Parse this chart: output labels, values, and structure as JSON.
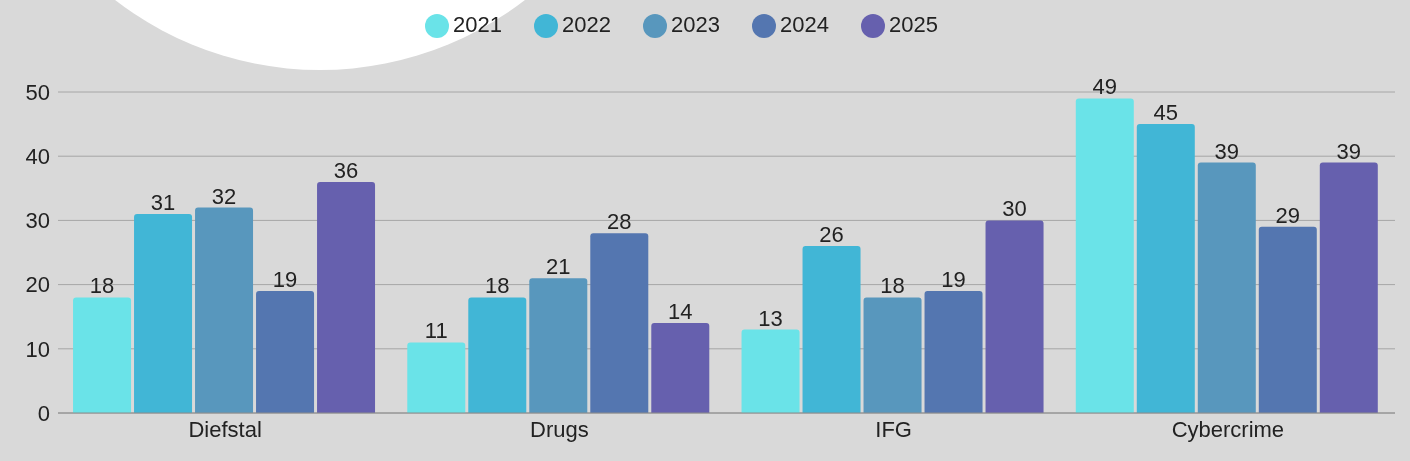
{
  "chart_data": {
    "type": "bar",
    "categories": [
      "Diefstal",
      "Drugs",
      "IFG",
      "Cybercrime"
    ],
    "series": [
      {
        "name": "2021",
        "color": "#6ae3e8",
        "values": [
          18,
          11,
          13,
          49
        ]
      },
      {
        "name": "2022",
        "color": "#41b6d6",
        "values": [
          31,
          18,
          26,
          45
        ]
      },
      {
        "name": "2023",
        "color": "#5897bd",
        "values": [
          32,
          21,
          18,
          39
        ]
      },
      {
        "name": "2024",
        "color": "#5476b0",
        "values": [
          19,
          28,
          19,
          29
        ]
      },
      {
        "name": "2025",
        "color": "#6660ae",
        "values": [
          36,
          14,
          30,
          39
        ]
      }
    ],
    "ylim": [
      0,
      50
    ],
    "yticks": [
      0,
      10,
      20,
      30,
      40,
      50
    ],
    "grid": "y",
    "legend": "top",
    "data_labels": true
  }
}
